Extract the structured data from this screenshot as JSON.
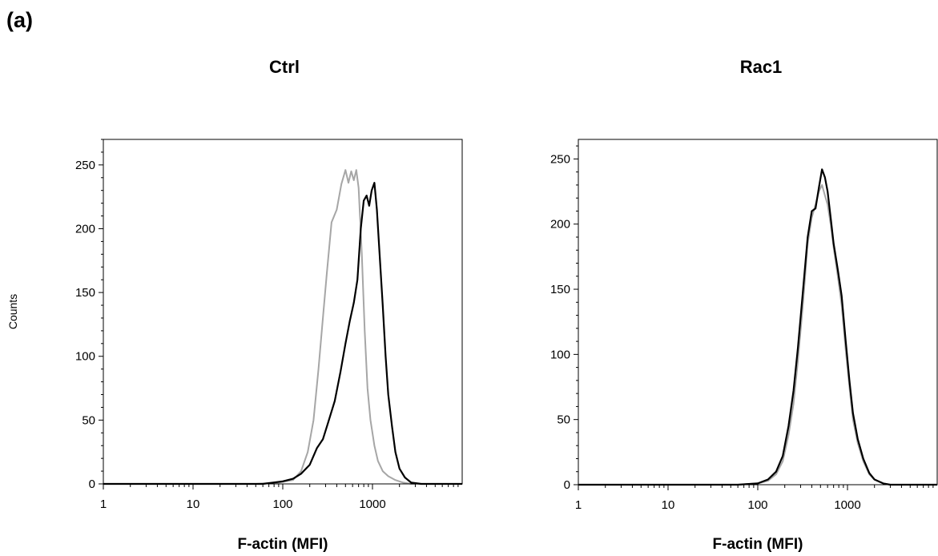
{
  "panel_label": "(a)",
  "chart_data": [
    {
      "type": "line",
      "title": "Ctrl",
      "xlabel": "F-actin (MFI)",
      "ylabel": "Counts",
      "x_scale": "log",
      "xlim": [
        1,
        10000
      ],
      "ylim": [
        0,
        270
      ],
      "x_tick_labels": [
        "1",
        "10",
        "100",
        "1000"
      ],
      "y_tick_labels": [
        "0",
        "50",
        "100",
        "150",
        "200",
        "250"
      ],
      "line_colors": [
        "#a6a6a6",
        "#000000"
      ],
      "series": [
        {
          "x": [
            1,
            50,
            90,
            130,
            160,
            190,
            220,
            250,
            280,
            310,
            350,
            400,
            450,
            500,
            540,
            580,
            620,
            660,
            700,
            760,
            820,
            880,
            950,
            1050,
            1150,
            1300,
            1500,
            1800,
            2200,
            2700,
            3500,
            10000
          ],
          "y": [
            0,
            0,
            1,
            3,
            10,
            25,
            50,
            90,
            130,
            165,
            205,
            215,
            235,
            246,
            236,
            245,
            238,
            246,
            232,
            180,
            120,
            75,
            50,
            30,
            18,
            10,
            6,
            3,
            1,
            0,
            0,
            0
          ]
        },
        {
          "x": [
            1,
            60,
            100,
            130,
            160,
            200,
            240,
            280,
            320,
            380,
            440,
            500,
            560,
            620,
            680,
            740,
            800,
            860,
            920,
            980,
            1050,
            1120,
            1200,
            1300,
            1400,
            1500,
            1650,
            1800,
            2000,
            2300,
            2700,
            3500,
            10000
          ],
          "y": [
            0,
            0,
            2,
            4,
            8,
            15,
            28,
            35,
            48,
            65,
            88,
            110,
            128,
            142,
            160,
            200,
            222,
            226,
            218,
            230,
            236,
            215,
            180,
            140,
            100,
            70,
            45,
            25,
            12,
            5,
            1,
            0,
            0
          ]
        }
      ]
    },
    {
      "type": "line",
      "title": "Rac1",
      "xlabel": "F-actin (MFI)",
      "ylabel": "",
      "x_scale": "log",
      "xlim": [
        1,
        10000
      ],
      "ylim": [
        0,
        265
      ],
      "x_tick_labels": [
        "1",
        "10",
        "100",
        "1000"
      ],
      "y_tick_labels": [
        "0",
        "50",
        "100",
        "150",
        "200",
        "250"
      ],
      "line_colors": [
        "#a6a6a6",
        "#000000"
      ],
      "series": [
        {
          "x": [
            1,
            60,
            100,
            130,
            160,
            190,
            220,
            250,
            280,
            320,
            360,
            400,
            440,
            480,
            520,
            560,
            600,
            650,
            700,
            780,
            860,
            950,
            1050,
            1150,
            1300,
            1500,
            1750,
            2000,
            2500,
            3000,
            10000
          ],
          "y": [
            0,
            0,
            1,
            3,
            8,
            18,
            38,
            62,
            95,
            140,
            185,
            205,
            215,
            225,
            230,
            222,
            215,
            200,
            182,
            160,
            138,
            105,
            75,
            50,
            32,
            18,
            8,
            4,
            1,
            0,
            0
          ]
        },
        {
          "x": [
            1,
            60,
            100,
            130,
            160,
            190,
            220,
            250,
            280,
            320,
            360,
            400,
            440,
            480,
            520,
            560,
            600,
            650,
            700,
            780,
            860,
            950,
            1050,
            1150,
            1300,
            1500,
            1750,
            2000,
            2500,
            3000,
            10000
          ],
          "y": [
            0,
            0,
            1,
            4,
            10,
            22,
            45,
            72,
            105,
            150,
            190,
            210,
            212,
            228,
            242,
            236,
            225,
            205,
            185,
            165,
            145,
            112,
            80,
            55,
            35,
            20,
            9,
            4,
            1,
            0,
            0
          ]
        }
      ]
    }
  ]
}
